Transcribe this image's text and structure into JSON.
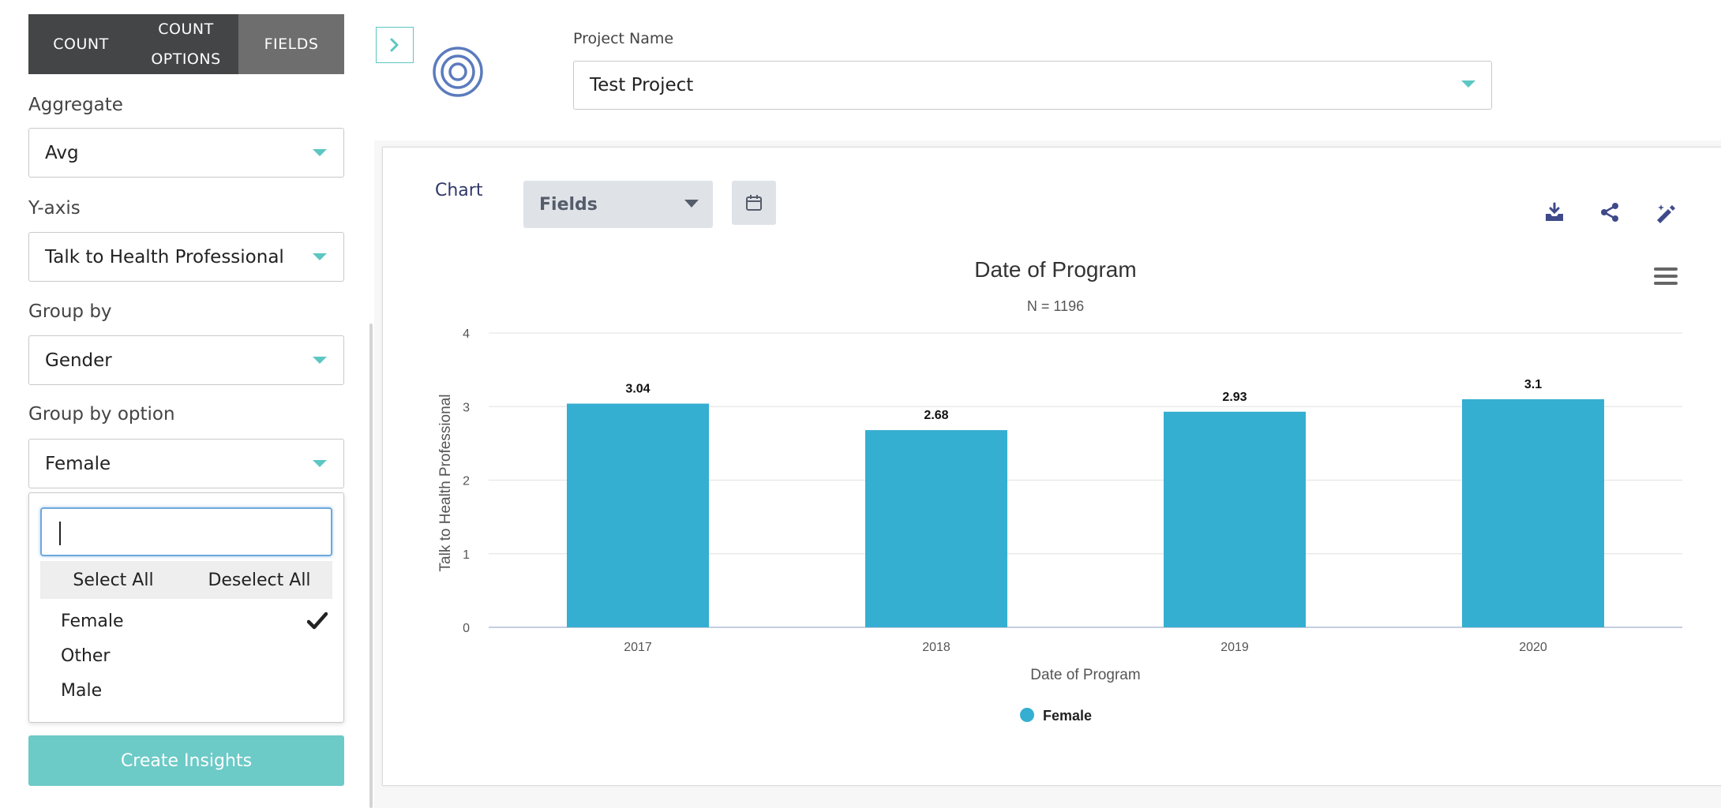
{
  "tabs": [
    {
      "label_line1": "COUNT",
      "label_line2": ""
    },
    {
      "label_line1": "COUNT",
      "label_line2": "OPTIONS"
    },
    {
      "label_line1": "FIELDS",
      "label_line2": ""
    }
  ],
  "filters": {
    "aggregate": {
      "label": "Aggregate",
      "value": "Avg"
    },
    "yaxis": {
      "label": "Y-axis",
      "value": "Talk to Health Professional"
    },
    "group_by": {
      "label": "Group by",
      "value": "Gender"
    },
    "group_by_option": {
      "label": "Group by option",
      "value": "Female"
    }
  },
  "popup": {
    "search_value": "",
    "select_all": "Select All",
    "deselect_all": "Deselect All",
    "options": [
      {
        "label": "Female",
        "checked": true
      },
      {
        "label": "Other",
        "checked": false
      },
      {
        "label": "Male",
        "checked": false
      }
    ]
  },
  "create_button": "Create Insights",
  "project": {
    "label": "Project Name",
    "value": "Test Project"
  },
  "card": {
    "chart_tab": "Chart",
    "fields_dropdown": "Fields"
  },
  "icons": {
    "toggle": "chevron-right-icon",
    "logo": "target-icon",
    "calendar": "calendar-icon",
    "download": "download-tray-icon",
    "share": "share-icon",
    "edit": "magic-pen-icon",
    "menu": "hamburger-menu-icon",
    "check": "checkmark-icon"
  },
  "colors": {
    "accent": "#5cc7c3",
    "bar": "#35afd1",
    "tab_dark": "#444546",
    "tab_active": "#6e6e6e",
    "button": "#6ccac7",
    "icon_navy": "#3f4a8a"
  },
  "chart_data": {
    "type": "bar",
    "title": "Date of Program",
    "subtitle": "N = 1196",
    "xlabel": "Date of Program",
    "ylabel": "Talk to Health Professional",
    "categories": [
      "2017",
      "2018",
      "2019",
      "2020"
    ],
    "series": [
      {
        "name": "Female",
        "values": [
          3.04,
          2.68,
          2.93,
          3.1
        ],
        "labels": [
          "3.04",
          "2.68",
          "2.93",
          "3.1"
        ],
        "color": "#35afd1"
      }
    ],
    "ylim": [
      0,
      4
    ],
    "yticks": [
      "0",
      "1",
      "2",
      "3",
      "4"
    ],
    "grid": true,
    "legend": "bottom-center"
  }
}
